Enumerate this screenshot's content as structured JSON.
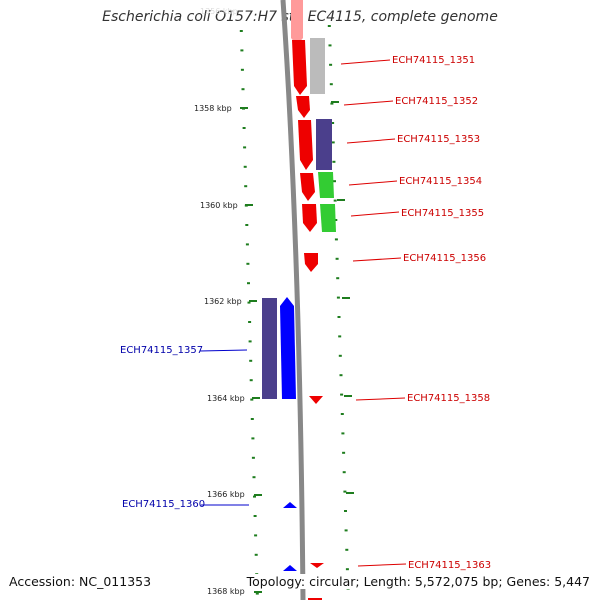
{
  "title": "Escherichia coli O157:H7 str. EC4115, complete genome",
  "footer": {
    "accession": "Accession: NC_011353",
    "stats": "Topology: circular; Length: 5,572,075 bp; Genes: 5,447"
  },
  "colors": {
    "forward_strand": "#ff0000",
    "reverse_strand": "#0000ff",
    "green_feature": "#33cc33",
    "purple_feature": "#4b3f8c",
    "grey_feature": "#bbbbbb",
    "backbone": "#888888",
    "tick": "#1e7d1e"
  },
  "scale": {
    "ticks": [
      "1358 kbp",
      "1360 kbp",
      "1362 kbp",
      "1364 kbp",
      "1366 kbp",
      "1368 kbp"
    ]
  },
  "gene_labels": {
    "right": [
      "ECH74115_1351",
      "ECH74115_1352",
      "ECH74115_1353",
      "ECH74115_1354",
      "ECH74115_1355",
      "ECH74115_1356",
      "ECH74115_1358",
      "ECH74115_1363"
    ],
    "left": [
      "ECH74115_1357",
      "ECH74115_1360"
    ]
  }
}
